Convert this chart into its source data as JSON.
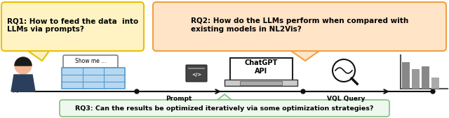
{
  "bg_color": "#ffffff",
  "rq1_text": "RQ1: How to feed the data  into\nLLMs via prompts?",
  "rq1_box_color": "#FFF3C4",
  "rq1_border_color": "#E8C000",
  "rq2_text": "RQ2: How do the LLMs perform when compared with\nexisting models in NL2Vis?",
  "rq2_box_color": "#FFE4C8",
  "rq2_border_color": "#F0A040",
  "rq3_text": "RQ3: Can the results be optimized iteratively via some optimization strategies?",
  "rq3_box_color": "#EEF8EE",
  "rq3_border_color": "#80C080",
  "prompt_label": "Prompt",
  "vql_label": "VQL Query",
  "chatgpt_label": "ChatGPT\nAPI",
  "show_me_label": "Show me ...",
  "person_body_color": "#2B3F5C",
  "person_head_color": "#F5B895",
  "person_hair_color": "#1a1a1a",
  "table_color": "#B8D8F0",
  "table_border": "#5599CC",
  "arrow_color": "#111111",
  "figure_width": 6.4,
  "figure_height": 1.69
}
